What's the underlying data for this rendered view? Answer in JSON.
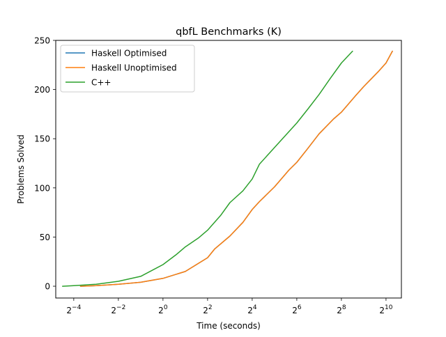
{
  "chart_data": {
    "type": "line",
    "title": "qbfL Benchmarks (K)",
    "xlabel": "Time (seconds)",
    "ylabel": "Problems Solved",
    "x_scale": "log2",
    "xlim": [
      0.0357,
      1652
    ],
    "ylim": [
      -12,
      250
    ],
    "grid": false,
    "legend_position": "top-left",
    "x_ticks": [
      {
        "value": 0.0625,
        "base": "2",
        "exp": "−4"
      },
      {
        "value": 0.25,
        "base": "2",
        "exp": "−2"
      },
      {
        "value": 1,
        "base": "2",
        "exp": "0"
      },
      {
        "value": 4,
        "base": "2",
        "exp": "2"
      },
      {
        "value": 16,
        "base": "2",
        "exp": "4"
      },
      {
        "value": 64,
        "base": "2",
        "exp": "6"
      },
      {
        "value": 256,
        "base": "2",
        "exp": "8"
      },
      {
        "value": 1024,
        "base": "2",
        "exp": "10"
      }
    ],
    "y_ticks": [
      0,
      50,
      100,
      150,
      200,
      250
    ],
    "series": [
      {
        "name": "Haskell Optimised",
        "color": "#1f77b4",
        "x": [
          0.077,
          0.125,
          0.25,
          0.5,
          1,
          2,
          4,
          5,
          8,
          12,
          16,
          20,
          32,
          50,
          64,
          90,
          128,
          200,
          256,
          400,
          512,
          800,
          1024,
          1250
        ],
        "y": [
          0,
          0.5,
          2,
          4,
          8,
          15,
          29,
          38,
          51,
          65,
          78,
          86,
          101,
          118,
          126,
          140,
          155,
          170,
          177,
          194,
          203,
          218,
          227,
          239
        ]
      },
      {
        "name": "Haskell Unoptimised",
        "color": "#ff7f0e",
        "x": [
          0.077,
          0.125,
          0.25,
          0.5,
          1,
          2,
          4,
          5,
          8,
          12,
          16,
          20,
          32,
          50,
          64,
          90,
          128,
          200,
          256,
          400,
          512,
          800,
          1024,
          1250
        ],
        "y": [
          0,
          0.5,
          2,
          4,
          8,
          15,
          29,
          38,
          51,
          65,
          78,
          86,
          101,
          118,
          126,
          140,
          155,
          170,
          177,
          194,
          203,
          218,
          227,
          239
        ]
      },
      {
        "name": "C++",
        "color": "#2ca02c",
        "x": [
          0.044,
          0.0625,
          0.125,
          0.25,
          0.5,
          1,
          1.5,
          2,
          3,
          4,
          6,
          8,
          12,
          16,
          20,
          32,
          64,
          90,
          128,
          180,
          256,
          362
        ],
        "y": [
          0,
          0.5,
          2,
          5,
          10,
          22,
          32,
          40,
          49,
          57,
          72,
          85,
          97,
          109,
          124,
          141,
          166,
          180,
          195,
          211,
          227,
          239
        ]
      }
    ]
  }
}
